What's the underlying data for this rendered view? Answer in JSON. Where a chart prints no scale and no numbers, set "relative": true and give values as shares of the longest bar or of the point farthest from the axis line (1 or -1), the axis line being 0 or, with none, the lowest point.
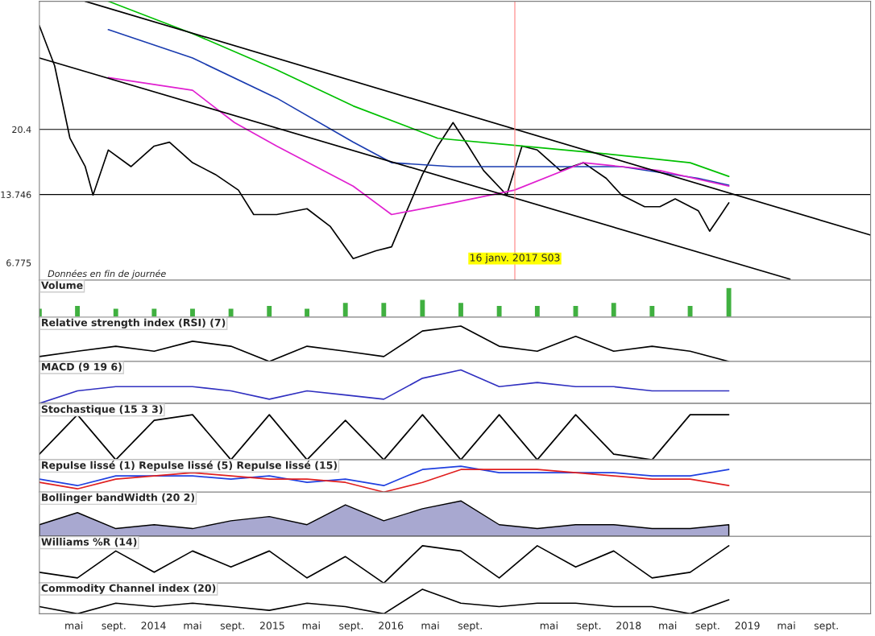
{
  "chart_data": [
    {
      "type": "line",
      "xlim": [
        "2013-01-15",
        "2020-01-15"
      ],
      "ylim": [
        5.0,
        33.5
      ],
      "yticks": [
        6.775,
        20.4,
        13.746
      ],
      "tick_labels": "y",
      "grid": false,
      "annotations": [
        "Données en fin de journée"
      ],
      "ref_lines": [
        {
          "axis": "y",
          "value": 20.4,
          "color": "#000000"
        },
        {
          "axis": "y",
          "value": 13.746,
          "color": "#000000"
        },
        {
          "axis": "x",
          "value": "2017-01-16",
          "label": "16 janv. 2017 S03",
          "color": "#ff8080"
        }
      ],
      "series": [
        {
          "type": "line",
          "color": "#000000",
          "x": [
            "2013-01-15",
            "2013-03-03",
            "2013-04-19",
            "2013-06-05",
            "2013-06-29",
            "2013-08-15",
            "2013-10-24",
            "2014-01-03",
            "2014-02-19",
            "2014-05-01",
            "2014-07-10",
            "2014-09-19",
            "2014-11-05",
            "2015-01-15",
            "2015-04-18",
            "2015-06-28",
            "2015-09-07",
            "2015-11-16",
            "2016-01-03",
            "2016-02-19",
            "2016-04-07",
            "2016-05-24",
            "2016-07-10",
            "2016-08-26",
            "2016-10-12",
            "2016-12-22",
            "2017-02-07",
            "2017-03-26",
            "2017-06-05",
            "2017-08-15",
            "2017-10-24",
            "2017-12-10",
            "2018-02-19",
            "2018-04-07",
            "2018-05-24",
            "2018-08-03",
            "2018-09-07",
            "2018-10-12",
            "2018-11-05"
          ],
          "values": [
            31.0,
            26.9,
            19.5,
            16.6,
            13.7,
            18.3,
            16.6,
            18.7,
            19.1,
            17.0,
            15.8,
            14.2,
            11.7,
            11.7,
            12.3,
            10.5,
            7.2,
            8.0,
            8.4,
            12.1,
            15.8,
            18.7,
            21.1,
            18.7,
            16.2,
            13.7,
            18.7,
            18.3,
            16.2,
            17.0,
            15.4,
            13.7,
            12.5,
            12.5,
            13.3,
            12.1,
            10.0,
            11.7,
            12.9
          ]
        },
        {
          "type": "line",
          "color": "#00c000",
          "x": [
            "2013-08-15",
            "2014-05-01",
            "2015-01-15",
            "2015-09-07",
            "2016-05-24",
            "2017-02-07",
            "2017-10-24",
            "2018-07-09",
            "2018-11-05"
          ],
          "values": [
            33.5,
            30.2,
            26.5,
            22.8,
            19.5,
            18.7,
            17.9,
            17.0,
            15.6
          ]
        },
        {
          "type": "line",
          "color": "#1a3cb0",
          "x": [
            "2013-08-15",
            "2014-05-01",
            "2015-01-15",
            "2015-09-07",
            "2016-01-03",
            "2016-07-10",
            "2017-03-26",
            "2017-12-10",
            "2018-08-03",
            "2018-11-05"
          ],
          "values": [
            30.6,
            27.7,
            23.6,
            19.1,
            17.0,
            16.6,
            16.6,
            16.6,
            15.4,
            14.7
          ]
        },
        {
          "type": "line",
          "color": "#e020d0",
          "x": [
            "2013-08-15",
            "2014-05-01",
            "2014-09-07",
            "2015-01-15",
            "2015-09-07",
            "2016-01-03",
            "2016-07-10",
            "2017-01-15",
            "2017-08-15",
            "2018-04-07",
            "2018-11-05"
          ],
          "values": [
            25.7,
            24.4,
            21.1,
            18.7,
            14.6,
            11.7,
            12.9,
            14.2,
            17.0,
            16.2,
            14.6
          ]
        },
        {
          "type": "line",
          "color": "#000000",
          "x": [
            "2013-06-05",
            "2020-01-15"
          ],
          "values": [
            33.5,
            9.6
          ]
        },
        {
          "type": "line",
          "color": "#000000",
          "x": [
            "2013-01-15",
            "2019-05-12"
          ],
          "values": [
            27.7,
            5.1
          ]
        }
      ]
    },
    {
      "type": "bar",
      "relative": true,
      "title": "Volume",
      "xlim": [
        "2013-01-15",
        "2020-01-15"
      ],
      "tick_labels": false,
      "color": "#40b040",
      "x": [
        "2013-01-15",
        "2013-05-12",
        "2013-09-07",
        "2014-01-03",
        "2014-05-01",
        "2014-08-27",
        "2014-12-23",
        "2015-04-18",
        "2015-08-14",
        "2015-12-10",
        "2016-04-07",
        "2016-08-03",
        "2016-11-29",
        "2017-03-26",
        "2017-07-22",
        "2017-11-16",
        "2018-03-14",
        "2018-07-09",
        "2018-11-05"
      ],
      "values": [
        0.3,
        0.4,
        0.3,
        0.3,
        0.3,
        0.3,
        0.4,
        0.3,
        0.5,
        0.5,
        0.6,
        0.5,
        0.4,
        0.4,
        0.4,
        0.5,
        0.4,
        0.4,
        1.0
      ]
    },
    {
      "type": "line",
      "relative": true,
      "title": "Relative strength index (RSI) (7)",
      "xlim": [
        "2013-01-15",
        "2020-01-15"
      ],
      "tick_labels": false,
      "color": "#000000",
      "x": [
        "2013-01-15",
        "2013-05-12",
        "2013-09-07",
        "2014-01-03",
        "2014-05-01",
        "2014-08-27",
        "2014-12-23",
        "2015-04-18",
        "2015-08-14",
        "2015-12-10",
        "2016-04-07",
        "2016-08-03",
        "2016-11-29",
        "2017-03-26",
        "2017-07-22",
        "2017-11-16",
        "2018-03-14",
        "2018-07-09",
        "2018-11-05"
      ],
      "values": [
        0.14,
        0.29,
        0.43,
        0.29,
        0.57,
        0.43,
        0,
        0.43,
        0.29,
        0.14,
        0.86,
        1,
        0.43,
        0.29,
        0.71,
        0.29,
        0.43,
        0.29,
        0
      ]
    },
    {
      "type": "line",
      "relative": true,
      "title": "MACD (9 19 6)",
      "xlim": [
        "2013-01-15",
        "2020-01-15"
      ],
      "tick_labels": false,
      "color": "#3030c0",
      "x": [
        "2013-01-15",
        "2013-05-12",
        "2013-09-07",
        "2014-01-03",
        "2014-05-01",
        "2014-08-27",
        "2014-12-23",
        "2015-04-18",
        "2015-08-14",
        "2015-12-10",
        "2016-04-07",
        "2016-08-03",
        "2016-11-29",
        "2017-03-26",
        "2017-07-22",
        "2017-11-16",
        "2018-03-14",
        "2018-07-09",
        "2018-11-05"
      ],
      "values": [
        0,
        0.375,
        0.5,
        0.5,
        0.5,
        0.375,
        0.125,
        0.375,
        0.25,
        0.125,
        0.75,
        1,
        0.5,
        0.625,
        0.5,
        0.5,
        0.375,
        0.375,
        0.375
      ]
    },
    {
      "type": "line",
      "relative": true,
      "title": "Stochastique (15 3 3)",
      "xlim": [
        "2013-01-15",
        "2020-01-15"
      ],
      "tick_labels": false,
      "color": "#000000",
      "x": [
        "2013-01-15",
        "2013-05-12",
        "2013-09-07",
        "2014-01-03",
        "2014-05-01",
        "2014-08-27",
        "2014-12-23",
        "2015-04-18",
        "2015-08-14",
        "2015-12-10",
        "2016-04-07",
        "2016-08-03",
        "2016-11-29",
        "2017-03-26",
        "2017-07-22",
        "2017-11-16",
        "2018-03-14",
        "2018-07-09",
        "2018-11-05"
      ],
      "values": [
        0.125,
        1,
        0,
        0.875,
        1,
        0,
        1,
        0,
        0.875,
        0,
        1,
        0,
        1,
        0,
        1,
        0.125,
        0,
        1,
        1
      ]
    },
    {
      "type": "line",
      "relative": true,
      "title": "Repulse lissé (1) Repulse lissé (5) Repulse lissé (15)",
      "xlim": [
        "2013-01-15",
        "2020-01-15"
      ],
      "tick_labels": false,
      "x": [
        "2013-01-15",
        "2013-05-12",
        "2013-09-07",
        "2014-01-03",
        "2014-05-01",
        "2014-08-27",
        "2014-12-23",
        "2015-04-18",
        "2015-08-14",
        "2015-12-10",
        "2016-04-07",
        "2016-08-03",
        "2016-11-29",
        "2017-03-26",
        "2017-07-22",
        "2017-11-16",
        "2018-03-14",
        "2018-07-09",
        "2018-11-05"
      ],
      "series": [
        {
          "color": "#2040e0",
          "values": [
            0.5,
            0.25,
            0.625,
            0.625,
            0.625,
            0.5,
            0.625,
            0.375,
            0.5,
            0.25,
            0.875,
            1,
            0.75,
            0.75,
            0.75,
            0.75,
            0.625,
            0.625,
            0.875
          ]
        },
        {
          "color": "#e02020",
          "values": [
            0.375,
            0.125,
            0.5,
            0.625,
            0.75,
            0.625,
            0.5,
            0.5,
            0.375,
            0,
            0.375,
            0.875,
            0.875,
            0.875,
            0.75,
            0.625,
            0.5,
            0.5,
            0.25
          ]
        }
      ]
    },
    {
      "type": "area",
      "relative": true,
      "title": "Bollinger bandWidth (20 2)",
      "xlim": [
        "2013-01-15",
        "2020-01-15"
      ],
      "tick_labels": false,
      "color": "#a8a8d0",
      "x": [
        "2013-01-15",
        "2013-05-12",
        "2013-09-07",
        "2014-01-03",
        "2014-05-01",
        "2014-08-27",
        "2014-12-23",
        "2015-04-18",
        "2015-08-14",
        "2015-12-10",
        "2016-04-07",
        "2016-08-03",
        "2016-11-29",
        "2017-03-26",
        "2017-07-22",
        "2017-11-16",
        "2018-03-14",
        "2018-07-09",
        "2018-11-05"
      ],
      "values": [
        0.33,
        0.67,
        0.22,
        0.33,
        0.22,
        0.44,
        0.56,
        0.33,
        0.89,
        0.44,
        0.78,
        1,
        0.33,
        0.22,
        0.33,
        0.33,
        0.22,
        0.22,
        0.33
      ]
    },
    {
      "type": "line",
      "relative": true,
      "title": "Williams %R (14)",
      "xlim": [
        "2013-01-15",
        "2020-01-15"
      ],
      "tick_labels": false,
      "color": "#000000",
      "x": [
        "2013-01-15",
        "2013-05-12",
        "2013-09-07",
        "2014-01-03",
        "2014-05-01",
        "2014-08-27",
        "2014-12-23",
        "2015-04-18",
        "2015-08-14",
        "2015-12-10",
        "2016-04-07",
        "2016-08-03",
        "2016-11-29",
        "2017-03-26",
        "2017-07-22",
        "2017-11-16",
        "2018-03-14",
        "2018-07-09",
        "2018-11-05"
      ],
      "values": [
        0.29,
        0.14,
        0.86,
        0.29,
        0.86,
        0.43,
        0.86,
        0.14,
        0.71,
        0,
        1,
        0.86,
        0.14,
        1,
        0.43,
        0.86,
        0.14,
        0.29,
        1
      ]
    },
    {
      "type": "line",
      "relative": true,
      "title": "Commodity Channel index (20)",
      "xlim": [
        "2013-01-15",
        "2020-01-15"
      ],
      "tick_labels": "x",
      "color": "#000000",
      "xticks": [
        {
          "value": "2013-05-01",
          "label": "mai"
        },
        {
          "value": "2013-09-01",
          "label": "sept."
        },
        {
          "value": "2014-01-01",
          "label": "2014"
        },
        {
          "value": "2014-05-01",
          "label": "mai"
        },
        {
          "value": "2014-09-01",
          "label": "sept."
        },
        {
          "value": "2015-01-01",
          "label": "2015"
        },
        {
          "value": "2015-05-01",
          "label": "mai"
        },
        {
          "value": "2015-09-01",
          "label": "sept."
        },
        {
          "value": "2016-01-01",
          "label": "2016"
        },
        {
          "value": "2016-05-01",
          "label": "mai"
        },
        {
          "value": "2016-09-01",
          "label": "sept."
        },
        {
          "value": "2017-05-01",
          "label": "mai"
        },
        {
          "value": "2017-09-01",
          "label": "sept."
        },
        {
          "value": "2018-01-01",
          "label": "2018"
        },
        {
          "value": "2018-05-01",
          "label": "mai"
        },
        {
          "value": "2018-09-01",
          "label": "sept."
        },
        {
          "value": "2019-01-01",
          "label": "2019"
        },
        {
          "value": "2019-05-01",
          "label": "mai"
        },
        {
          "value": "2019-09-01",
          "label": "sept."
        }
      ],
      "x": [
        "2013-01-15",
        "2013-05-12",
        "2013-09-07",
        "2014-01-03",
        "2014-05-01",
        "2014-08-27",
        "2014-12-23",
        "2015-04-18",
        "2015-08-14",
        "2015-12-10",
        "2016-04-07",
        "2016-08-03",
        "2016-11-29",
        "2017-03-26",
        "2017-07-22",
        "2017-11-16",
        "2018-03-14",
        "2018-07-09",
        "2018-11-05"
      ],
      "values": [
        0.29,
        0,
        0.43,
        0.29,
        0.43,
        0.29,
        0.14,
        0.43,
        0.29,
        0,
        1,
        0.43,
        0.29,
        0.43,
        0.43,
        0.29,
        0.29,
        0,
        0.57
      ]
    }
  ]
}
